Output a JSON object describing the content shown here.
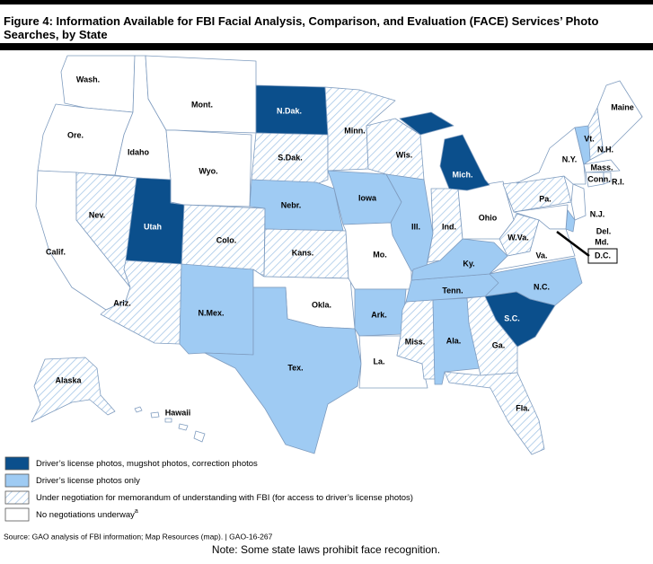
{
  "title": "Figure 4: Information Available for FBI Facial Analysis, Comparison, and Evaluation (FACE) Services’ Photo Searches, by State",
  "legend": [
    {
      "label": "Driver’s license photos, mugshot photos, correction photos",
      "color": "#0b4f8c",
      "hatch": false,
      "states": [
        "N.Dak.",
        "Mich.",
        "Utah",
        "S.C."
      ]
    },
    {
      "label": "Driver’s license photos only",
      "color": "#9fcbf3",
      "hatch": false,
      "states": [
        "Nebr.",
        "Iowa",
        "Ill.",
        "Vt.",
        "Ky.",
        "N.Mex.",
        "Tex.",
        "Ark.",
        "Tenn.",
        "N.C.",
        "Ala.",
        "Del."
      ]
    },
    {
      "label": "Under negotiation for memorandum of understanding with FBI (for access to driver’s license photos)",
      "color": "#a9c9e8",
      "hatch": true,
      "states": [
        "Minn.",
        "S.Dak.",
        "Wis.",
        "Nev.",
        "Colo.",
        "Kans.",
        "Ind.",
        "Pa.",
        "W.Va.",
        "Ariz.",
        "Miss.",
        "Ga.",
        "Fla.",
        "Alaska",
        "N.H."
      ]
    },
    {
      "label": "No negotiations underway",
      "marker": "a",
      "color": "#ffffff",
      "hatch": false,
      "states": [
        "Wash.",
        "Ore.",
        "Calif.",
        "Idaho",
        "Mont.",
        "Wyo.",
        "Okla.",
        "Mo.",
        "La.",
        "Ohio",
        "Va.",
        "N.Y.",
        "Maine",
        "Mass.",
        "Conn.",
        "R.I.",
        "N.J.",
        "Md.",
        "D.C.",
        "Hawaii"
      ]
    }
  ],
  "source": "Source: GAO analysis of FBI information; Map Resources (map).  |  GAO-16-267",
  "note": "Note: Some state laws prohibit face recognition."
}
